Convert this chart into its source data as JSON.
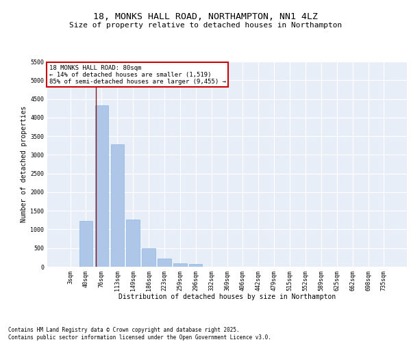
{
  "title_line1": "18, MONKS HALL ROAD, NORTHAMPTON, NN1 4LZ",
  "title_line2": "Size of property relative to detached houses in Northampton",
  "xlabel": "Distribution of detached houses by size in Northampton",
  "ylabel": "Number of detached properties",
  "bar_color": "#aec6e8",
  "bar_edge_color": "#7aafe0",
  "vline_color": "#8b1a1a",
  "annotation_title": "18 MONKS HALL ROAD: 80sqm",
  "annotation_line2": "← 14% of detached houses are smaller (1,519)",
  "annotation_line3": "85% of semi-detached houses are larger (9,455) →",
  "annotation_box_color": "#cc0000",
  "categories": [
    "3sqm",
    "40sqm",
    "76sqm",
    "113sqm",
    "149sqm",
    "186sqm",
    "223sqm",
    "259sqm",
    "296sqm",
    "332sqm",
    "369sqm",
    "406sqm",
    "442sqm",
    "479sqm",
    "515sqm",
    "552sqm",
    "589sqm",
    "625sqm",
    "662sqm",
    "698sqm",
    "735sqm"
  ],
  "values": [
    0,
    1220,
    4330,
    3290,
    1265,
    490,
    215,
    95,
    65,
    0,
    0,
    0,
    0,
    0,
    0,
    0,
    0,
    0,
    0,
    0,
    0
  ],
  "ylim": [
    0,
    5500
  ],
  "yticks": [
    0,
    500,
    1000,
    1500,
    2000,
    2500,
    3000,
    3500,
    4000,
    4500,
    5000,
    5500
  ],
  "background_color": "#e8eef8",
  "footer_line1": "Contains HM Land Registry data © Crown copyright and database right 2025.",
  "footer_line2": "Contains public sector information licensed under the Open Government Licence v3.0.",
  "title_fontsize": 9.5,
  "subtitle_fontsize": 8,
  "label_fontsize": 7,
  "tick_fontsize": 6,
  "footer_fontsize": 5.5,
  "annotation_fontsize": 6.5
}
